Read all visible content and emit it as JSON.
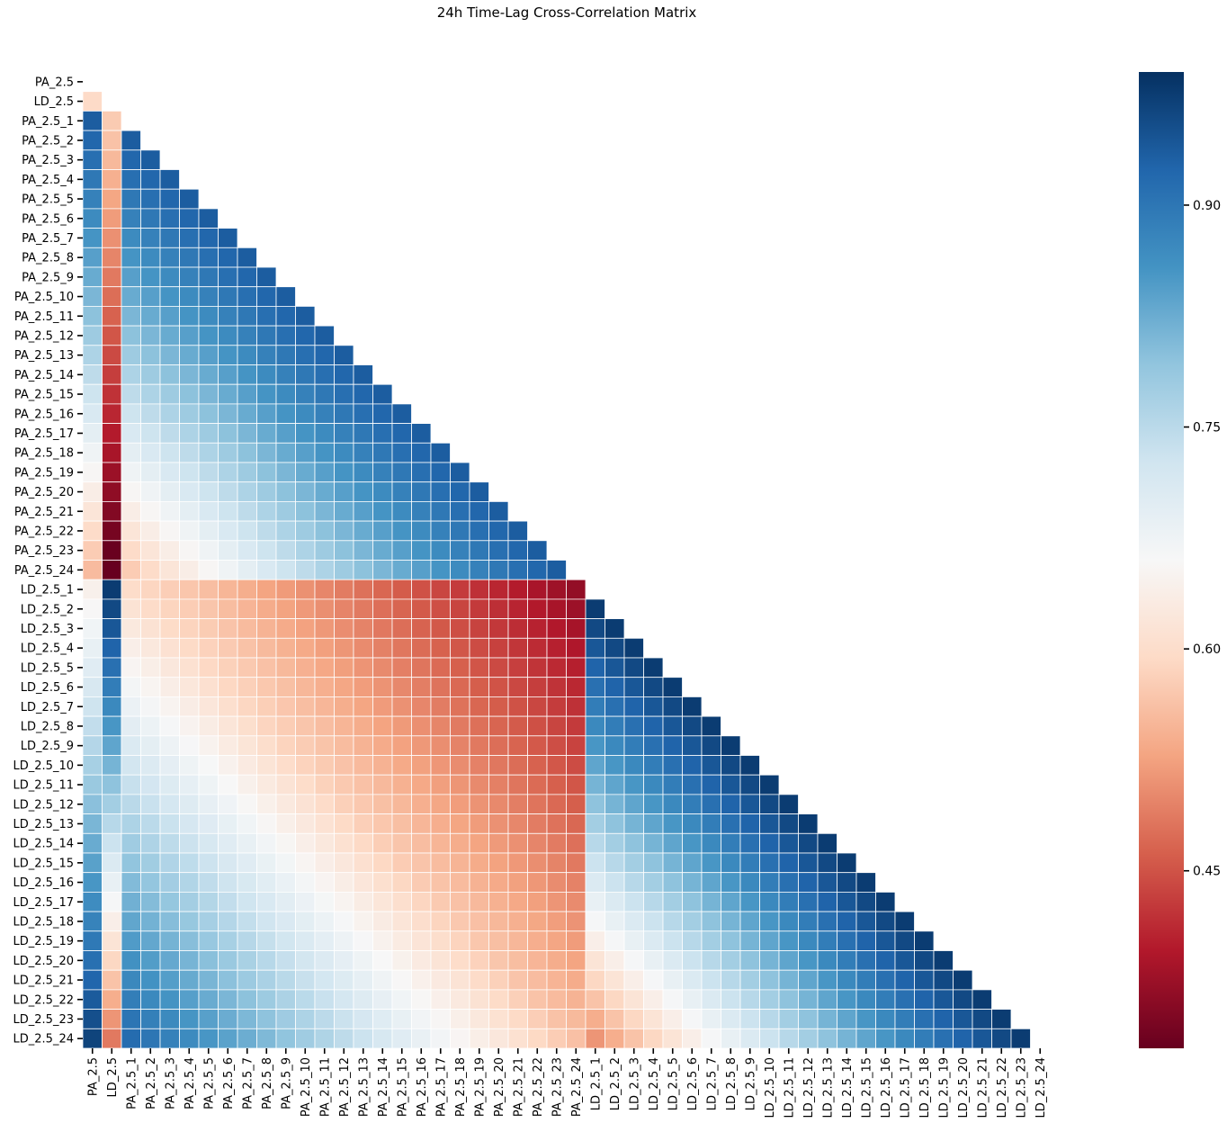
{
  "chart_data": {
    "type": "heatmap",
    "title": "24h Time-Lag Cross-Correlation Matrix",
    "labels": [
      "PA_2.5",
      "LD_2.5",
      "PA_2.5_1",
      "PA_2.5_2",
      "PA_2.5_3",
      "PA_2.5_4",
      "PA_2.5_5",
      "PA_2.5_6",
      "PA_2.5_7",
      "PA_2.5_8",
      "PA_2.5_9",
      "PA_2.5_10",
      "PA_2.5_11",
      "PA_2.5_12",
      "PA_2.5_13",
      "PA_2.5_14",
      "PA_2.5_15",
      "PA_2.5_16",
      "PA_2.5_17",
      "PA_2.5_18",
      "PA_2.5_19",
      "PA_2.5_20",
      "PA_2.5_21",
      "PA_2.5_22",
      "PA_2.5_23",
      "PA_2.5_24",
      "LD_2.5_1",
      "LD_2.5_2",
      "LD_2.5_3",
      "LD_2.5_4",
      "LD_2.5_5",
      "LD_2.5_6",
      "LD_2.5_7",
      "LD_2.5_8",
      "LD_2.5_9",
      "LD_2.5_10",
      "LD_2.5_11",
      "LD_2.5_12",
      "LD_2.5_13",
      "LD_2.5_14",
      "LD_2.5_15",
      "LD_2.5_16",
      "LD_2.5_17",
      "LD_2.5_18",
      "LD_2.5_19",
      "LD_2.5_20",
      "LD_2.5_21",
      "LD_2.5_22",
      "LD_2.5_23",
      "LD_2.5_24"
    ],
    "mask": "upper-triangle-including-diagonal",
    "colormap": "RdBu",
    "vmin": 0.33,
    "vmax": 0.99,
    "colorbar_ticks": [
      0.9,
      0.75,
      0.6,
      0.45
    ],
    "colorbar_tick_labels": [
      "0.90",
      "0.75",
      "0.60",
      "0.45"
    ],
    "approximation_note_values": {
      "pa_pa_lag1": 0.92,
      "pa_pa_decay_per_lag": 0.012,
      "pa_ld_same_time": 0.59,
      "ld_ld_lag1": 0.97,
      "ld_ld_decay_per_lag": 0.014,
      "pa_ld_min": 0.33,
      "pa_ld_max": 0.95
    }
  }
}
